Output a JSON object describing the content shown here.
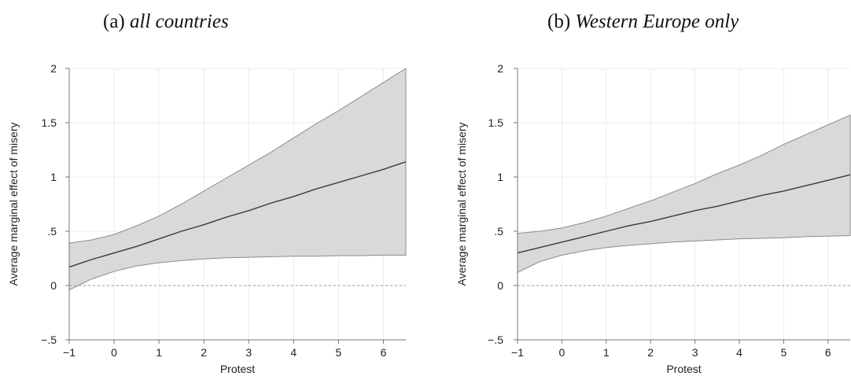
{
  "chart_data": [
    {
      "type": "line",
      "title_prefix": "(a) ",
      "title_italic": "all countries",
      "xlabel": "Protest",
      "ylabel": "Average marginal effect of misery",
      "xlim": [
        -1,
        6.5
      ],
      "ylim": [
        -0.5,
        2
      ],
      "x_ticks": [
        -1,
        0,
        1,
        2,
        3,
        4,
        5,
        6
      ],
      "x_tick_labels": [
        "−1",
        "0",
        "1",
        "2",
        "3",
        "4",
        "5",
        "6"
      ],
      "y_ticks": [
        -0.5,
        0,
        0.5,
        1,
        1.5,
        2
      ],
      "y_tick_labels": [
        "−.5",
        "0",
        ".5",
        "1",
        "1.5",
        "2"
      ],
      "grid": true,
      "reference_line_y": 0,
      "series": [
        {
          "x": [
            -1,
            -0.5,
            0,
            0.5,
            1,
            1.5,
            2,
            2.5,
            3,
            3.5,
            4,
            4.5,
            5,
            5.5,
            6,
            6.5
          ],
          "estimate": [
            0.17,
            0.24,
            0.3,
            0.36,
            0.43,
            0.5,
            0.56,
            0.63,
            0.69,
            0.76,
            0.82,
            0.89,
            0.95,
            1.01,
            1.07,
            1.14
          ],
          "ci_lower": [
            -0.04,
            0.06,
            0.13,
            0.18,
            0.21,
            0.23,
            0.245,
            0.255,
            0.26,
            0.265,
            0.27,
            0.27,
            0.275,
            0.275,
            0.28,
            0.28
          ],
          "ci_upper": [
            0.39,
            0.42,
            0.47,
            0.55,
            0.64,
            0.75,
            0.87,
            0.99,
            1.11,
            1.23,
            1.36,
            1.49,
            1.61,
            1.74,
            1.87,
            2.0
          ]
        }
      ]
    },
    {
      "type": "line",
      "title_prefix": "(b) ",
      "title_italic": "Western Europe only",
      "xlabel": "Protest",
      "ylabel": "Average marginal effect of misery",
      "xlim": [
        -1,
        6.5
      ],
      "ylim": [
        -0.5,
        2
      ],
      "x_ticks": [
        -1,
        0,
        1,
        2,
        3,
        4,
        5,
        6
      ],
      "x_tick_labels": [
        "−1",
        "0",
        "1",
        "2",
        "3",
        "4",
        "5",
        "6"
      ],
      "y_ticks": [
        -0.5,
        0,
        0.5,
        1,
        1.5,
        2
      ],
      "y_tick_labels": [
        "−.5",
        "0",
        ".5",
        "1",
        "1.5",
        "2"
      ],
      "grid": true,
      "reference_line_y": 0,
      "series": [
        {
          "x": [
            -1,
            -0.5,
            0,
            0.5,
            1,
            1.5,
            2,
            2.5,
            3,
            3.5,
            4,
            4.5,
            5,
            5.5,
            6,
            6.5
          ],
          "estimate": [
            0.3,
            0.35,
            0.4,
            0.45,
            0.5,
            0.55,
            0.59,
            0.64,
            0.69,
            0.73,
            0.78,
            0.83,
            0.87,
            0.92,
            0.97,
            1.02
          ],
          "ci_lower": [
            0.12,
            0.22,
            0.28,
            0.32,
            0.35,
            0.37,
            0.385,
            0.4,
            0.41,
            0.42,
            0.43,
            0.435,
            0.44,
            0.45,
            0.455,
            0.46
          ],
          "ci_upper": [
            0.48,
            0.5,
            0.53,
            0.58,
            0.64,
            0.71,
            0.78,
            0.86,
            0.94,
            1.03,
            1.11,
            1.2,
            1.3,
            1.39,
            1.48,
            1.57
          ]
        }
      ]
    }
  ],
  "colors": {
    "band_fill": "#d9d9db",
    "band_edge": "#8c8c8c",
    "estimate_line": "#3a3a3a",
    "grid": "#ececec",
    "axis": "#777777",
    "zero_line": "#9a9a9a"
  }
}
